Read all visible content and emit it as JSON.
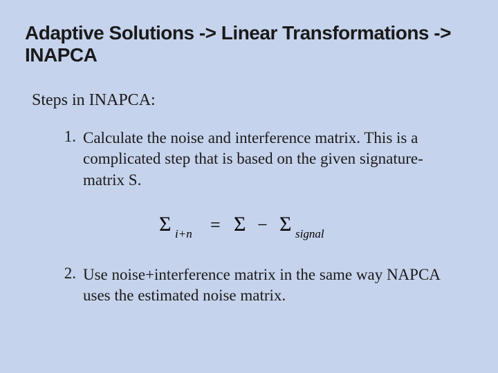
{
  "title": "Adaptive Solutions -> Linear Transformations -> INAPCA",
  "subheading": "Steps in INAPCA:",
  "items": [
    {
      "num": "1.",
      "text": "Calculate the noise and interference matrix. This is a complicated step that is based on the given signature-matrix S."
    },
    {
      "num": "2.",
      "text": "Use noise+interference matrix in the same way NAPCA uses the estimated noise matrix."
    }
  ],
  "equation": {
    "lhs_sigma": "Σ",
    "lhs_sub": "i+n",
    "eq": "=",
    "rhs_sigma1": "Σ",
    "minus": "−",
    "rhs_sigma2": "Σ",
    "rhs_sub": "signal"
  },
  "colors": {
    "background": "#c6d3ec",
    "text": "#1a1a1a",
    "equation": "#000000"
  },
  "fontsize": {
    "title": 28,
    "subheading": 24,
    "body": 23,
    "equation_main": 28,
    "equation_sub": 17
  }
}
